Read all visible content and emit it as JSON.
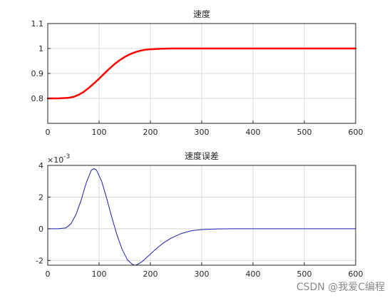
{
  "chart_data": [
    {
      "type": "line",
      "title": "速度",
      "xlabel": "",
      "ylabel": "",
      "xlim": [
        0,
        600
      ],
      "ylim": [
        0.7,
        1.1
      ],
      "xticks": [
        0,
        100,
        200,
        300,
        400,
        500,
        600
      ],
      "yticks": [
        0.8,
        0.9,
        1,
        1.1
      ],
      "grid": true,
      "series": [
        {
          "color": "#ff0000",
          "x": [
            0,
            20,
            40,
            50,
            60,
            70,
            80,
            90,
            100,
            110,
            120,
            130,
            140,
            150,
            160,
            170,
            180,
            190,
            200,
            210,
            220,
            240,
            260,
            300,
            400,
            500,
            600
          ],
          "y": [
            0.8,
            0.8,
            0.802,
            0.806,
            0.814,
            0.826,
            0.842,
            0.86,
            0.879,
            0.899,
            0.919,
            0.937,
            0.953,
            0.966,
            0.977,
            0.985,
            0.991,
            0.995,
            0.997,
            0.998,
            0.999,
            1.0,
            1.0,
            1.0,
            1.0,
            1.0,
            1.0
          ]
        }
      ]
    },
    {
      "type": "line",
      "title": "速度误差",
      "xlabel": "",
      "ylabel": "",
      "exponent_label": "×10",
      "exponent_power": "-3",
      "xlim": [
        0,
        600
      ],
      "ylim": [
        -2.3,
        4
      ],
      "xticks": [
        0,
        100,
        200,
        300,
        400,
        500,
        600
      ],
      "yticks": [
        -2,
        0,
        2,
        4
      ],
      "grid": true,
      "series": [
        {
          "color": "#1f1fb4",
          "x": [
            0,
            20,
            35,
            45,
            55,
            65,
            75,
            85,
            90,
            95,
            105,
            115,
            125,
            135,
            145,
            155,
            165,
            170,
            175,
            185,
            195,
            210,
            225,
            240,
            260,
            280,
            300,
            330,
            360,
            400,
            500,
            600
          ],
          "y": [
            0,
            0,
            0.05,
            0.3,
            0.9,
            1.8,
            2.9,
            3.7,
            3.8,
            3.7,
            3.0,
            1.9,
            0.7,
            -0.4,
            -1.3,
            -1.95,
            -2.25,
            -2.3,
            -2.25,
            -2.05,
            -1.75,
            -1.3,
            -0.9,
            -0.6,
            -0.3,
            -0.12,
            -0.05,
            -0.01,
            0,
            0,
            0,
            0
          ]
        }
      ]
    }
  ],
  "watermark": "CSDN @我爱C编程"
}
